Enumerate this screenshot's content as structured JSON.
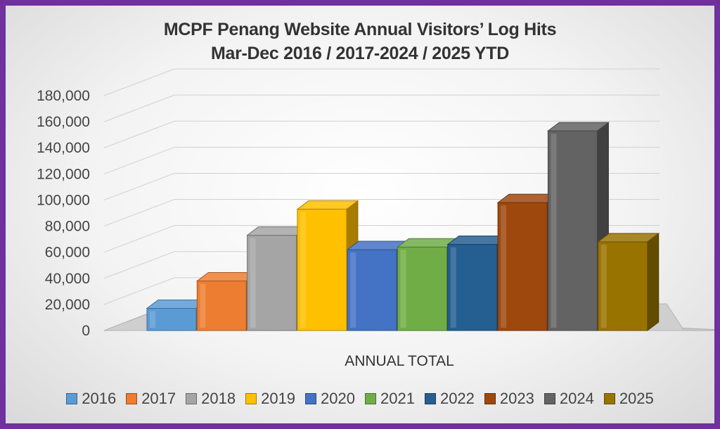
{
  "chart_data": {
    "type": "bar",
    "title": "MCPF Penang Website Annual Visitors’ Log Hits",
    "subtitle": "Mar-Dec 2016 / 2017-2024 / 2025 YTD",
    "xlabel": "ANNUAL TOTAL",
    "ylabel": "",
    "ylim": [
      0,
      180000
    ],
    "yticks": [
      "0",
      "20,000",
      "40,000",
      "60,000",
      "80,000",
      "100,000",
      "120,000",
      "140,000",
      "160,000",
      "180,000"
    ],
    "categories": [
      "ANNUAL TOTAL"
    ],
    "series": [
      {
        "name": "2016",
        "values": [
          17000
        ],
        "color": "#5b9bd5"
      },
      {
        "name": "2017",
        "values": [
          38000
        ],
        "color": "#ed7d31"
      },
      {
        "name": "2018",
        "values": [
          73000
        ],
        "color": "#a5a5a5"
      },
      {
        "name": "2019",
        "values": [
          93000
        ],
        "color": "#ffc000"
      },
      {
        "name": "2020",
        "values": [
          62000
        ],
        "color": "#4472c4"
      },
      {
        "name": "2021",
        "values": [
          64000
        ],
        "color": "#70ad47"
      },
      {
        "name": "2022",
        "values": [
          66000
        ],
        "color": "#255e91"
      },
      {
        "name": "2023",
        "values": [
          98000
        ],
        "color": "#9e480e"
      },
      {
        "name": "2024",
        "values": [
          153000
        ],
        "color": "#636363"
      },
      {
        "name": "2025",
        "values": [
          68000
        ],
        "color": "#997300"
      }
    ],
    "grid": true,
    "legend_position": "bottom"
  }
}
